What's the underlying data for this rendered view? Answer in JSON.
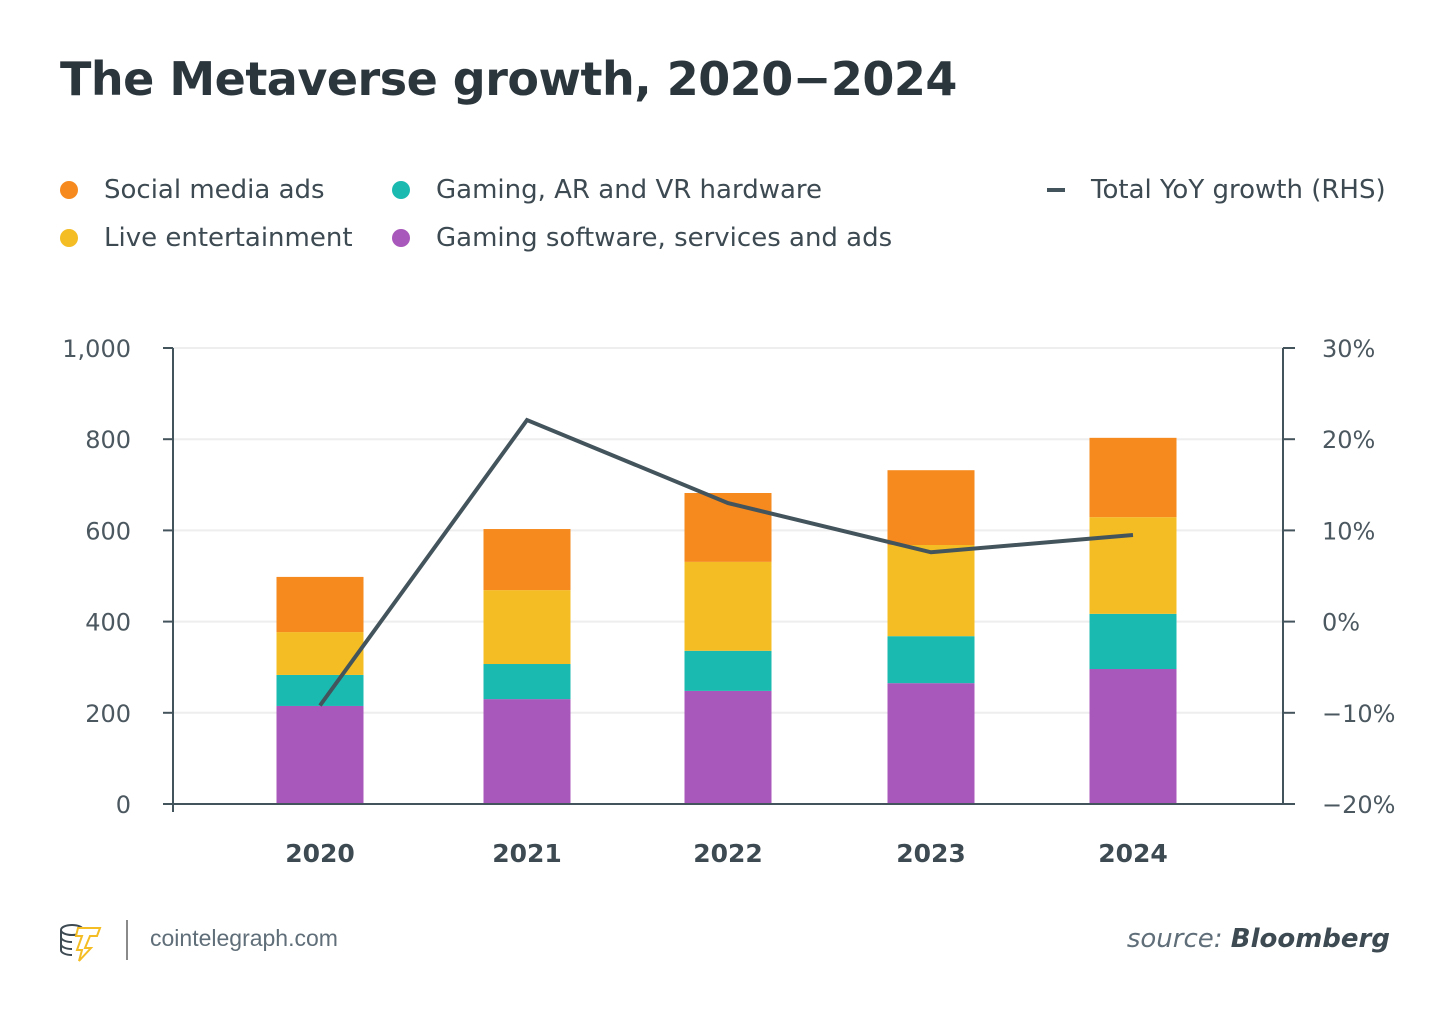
{
  "title": "The Metaverse growth, 2020−2024",
  "legend": [
    {
      "label": "Social media ads",
      "color": "#f68a1e"
    },
    {
      "label": "Live entertainment",
      "color": "#f4bd24"
    },
    {
      "label": "Gaming, AR and VR hardware",
      "color": "#1bbab1"
    },
    {
      "label": "Gaming software, services and ads",
      "color": "#a857ba"
    },
    {
      "label": "Total YoY growth (RHS)",
      "color": "#44545c"
    }
  ],
  "chart_data": {
    "type": "bar",
    "stacked": true,
    "title": "The Metaverse growth, 2020−2024",
    "categories": [
      "2020",
      "2021",
      "2022",
      "2023",
      "2024"
    ],
    "series": [
      {
        "name": "Gaming software, services and ads",
        "color": "#a857ba",
        "values": [
          215,
          230,
          248,
          265,
          296
        ]
      },
      {
        "name": "Gaming, AR and VR hardware",
        "color": "#1bbab1",
        "values": [
          68,
          77,
          88,
          103,
          121
        ]
      },
      {
        "name": "Live entertainment",
        "color": "#f4bd24",
        "values": [
          94,
          162,
          195,
          200,
          212
        ]
      },
      {
        "name": "Social media ads",
        "color": "#f68a1e",
        "values": [
          121,
          134,
          151,
          164,
          174
        ]
      }
    ],
    "line_series": {
      "name": "Total YoY growth (RHS)",
      "type": "line",
      "axis": "right",
      "color": "#44545c",
      "values": [
        -9.2,
        22.1,
        13.0,
        7.6,
        9.5
      ]
    },
    "ylim": [
      0,
      1000
    ],
    "yticks": [
      "0",
      "200",
      "400",
      "600",
      "800",
      "1,000"
    ],
    "y2lim": [
      -20,
      30
    ],
    "y2ticks": [
      "−20%",
      "−10%",
      "0%",
      "10%",
      "20%",
      "30%"
    ],
    "grid": true,
    "legend_position": "top"
  },
  "footer": {
    "site": "cointelegraph.com",
    "source_prefix": "source:",
    "source_name": "Bloomberg"
  }
}
